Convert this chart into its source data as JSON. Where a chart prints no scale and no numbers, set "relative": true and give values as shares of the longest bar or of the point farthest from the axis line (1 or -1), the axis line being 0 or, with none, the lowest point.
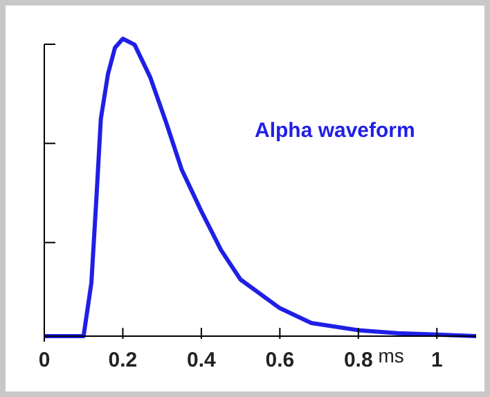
{
  "chart_data": {
    "type": "line",
    "relative": true,
    "xlabel": "ms",
    "xlim": [
      0,
      1.1
    ],
    "xticks": [
      0,
      0.2,
      0.4,
      0.6,
      0.8,
      1
    ],
    "grid": false,
    "legend": false,
    "marker": "none",
    "line_style": "solid",
    "series": [
      {
        "name": "Alpha waveform",
        "color": "#1f1fe6",
        "x": [
          0,
          0.1,
          0.12,
          0.133,
          0.144,
          0.162,
          0.18,
          0.2,
          0.23,
          0.27,
          0.31,
          0.35,
          0.4,
          0.45,
          0.5,
          0.6,
          0.68,
          0.8,
          0.9,
          1.0,
          1.1
        ],
        "values": [
          0,
          0,
          0.18,
          0.47,
          0.73,
          0.88,
          0.97,
          1,
          0.98,
          0.87,
          0.72,
          0.56,
          0.42,
          0.29,
          0.19,
          0.094,
          0.044,
          0.02,
          0.01,
          0.005,
          0
        ]
      }
    ]
  }
}
